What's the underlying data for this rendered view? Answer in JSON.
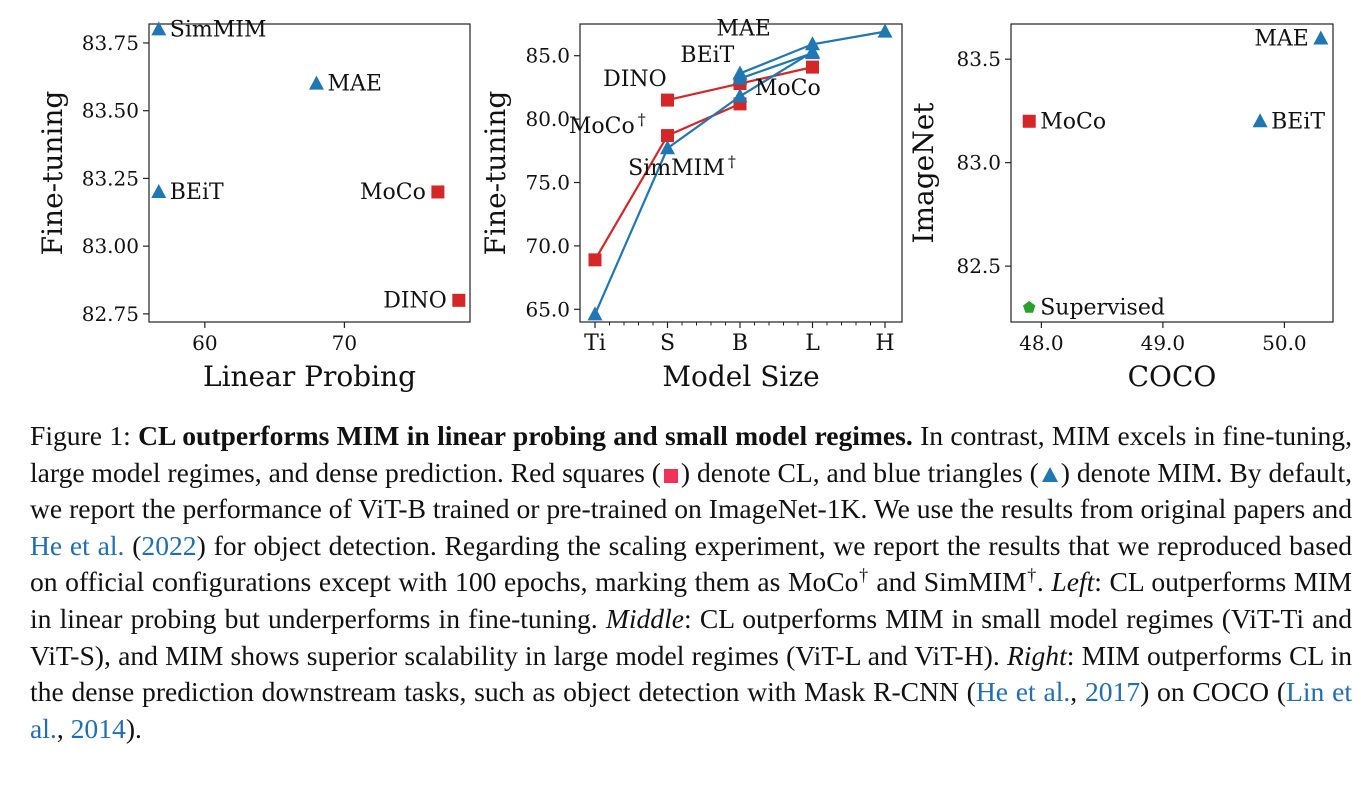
{
  "colors": {
    "cl": "#d62728",
    "mim": "#1f77b4",
    "supervised": "#2ca02c",
    "link": "#1f6fb5"
  },
  "chart_data": [
    {
      "type": "scatter",
      "xlabel": "Linear Probing",
      "ylabel": "Fine-tuning",
      "xlim": [
        56,
        79
      ],
      "ylim": [
        82.72,
        83.82
      ],
      "xticks": [
        60,
        70
      ],
      "xtick_labels": [
        "60",
        "70"
      ],
      "yticks": [
        82.75,
        83.0,
        83.25,
        83.5,
        83.75
      ],
      "ytick_labels": [
        "82.75",
        "83.00",
        "83.25",
        "83.50",
        "83.75"
      ],
      "points": [
        {
          "label": "SimMIM",
          "x": 56.7,
          "y": 83.8,
          "group": "mim",
          "marker": "triangle",
          "label_pos": "right"
        },
        {
          "label": "MAE",
          "x": 68.0,
          "y": 83.6,
          "group": "mim",
          "marker": "triangle",
          "label_pos": "right"
        },
        {
          "label": "BEiT",
          "x": 56.7,
          "y": 83.2,
          "group": "mim",
          "marker": "triangle",
          "label_pos": "right"
        },
        {
          "label": "MoCo",
          "x": 76.7,
          "y": 83.2,
          "group": "cl",
          "marker": "square",
          "label_pos": "left"
        },
        {
          "label": "DINO",
          "x": 78.2,
          "y": 82.8,
          "group": "cl",
          "marker": "square",
          "label_pos": "left"
        }
      ]
    },
    {
      "type": "line",
      "xlabel": "Model Size",
      "ylabel": "Fine-tuning",
      "categories": [
        "Ti",
        "S",
        "B",
        "L",
        "H"
      ],
      "ylim": [
        64.0,
        87.5
      ],
      "yticks": [
        65.0,
        70.0,
        75.0,
        80.0,
        85.0
      ],
      "ytick_labels": [
        "65.0",
        "70.0",
        "75.0",
        "80.0",
        "85.0"
      ],
      "series": [
        {
          "name": "DINO",
          "group": "cl",
          "marker": "square",
          "points": [
            [
              "S",
              81.5
            ],
            [
              "B",
              82.8
            ],
            [
              "L",
              84.1
            ]
          ]
        },
        {
          "name": "MoCo†",
          "group": "cl",
          "marker": "square",
          "points": [
            [
              "Ti",
              68.9
            ],
            [
              "S",
              78.7
            ],
            [
              "B",
              81.2
            ]
          ]
        },
        {
          "name": "SimMIM†",
          "group": "mim",
          "marker": "triangle",
          "points": [
            [
              "Ti",
              64.6
            ],
            [
              "S",
              77.7
            ],
            [
              "B",
              81.8
            ],
            [
              "L",
              85.3
            ]
          ]
        },
        {
          "name": "BEiT",
          "group": "mim",
          "marker": "triangle",
          "points": [
            [
              "B",
              83.2
            ],
            [
              "L",
              85.2
            ]
          ]
        },
        {
          "name": "MAE",
          "group": "mim",
          "marker": "triangle",
          "points": [
            [
              "B",
              83.6
            ],
            [
              "L",
              85.9
            ],
            [
              "H",
              86.9
            ]
          ]
        }
      ],
      "annotations": [
        {
          "text": "DINO",
          "group": "cl",
          "cat": 0.55,
          "y": 82.6
        },
        {
          "text": "MoCo",
          "dagger": true,
          "group": "cl",
          "cat": 0.17,
          "y": 78.9
        },
        {
          "text": "MoCo",
          "dagger": false,
          "group": "cl",
          "cat": 2.66,
          "y": 81.9
        },
        {
          "text": "BEiT",
          "group": "mim",
          "cat": 1.55,
          "y": 84.5
        },
        {
          "text": "MAE",
          "group": "mim",
          "cat": 2.05,
          "y": 86.6
        },
        {
          "text": "SimMIM",
          "dagger": true,
          "group": "mim",
          "cat": 1.2,
          "y": 75.6
        }
      ]
    },
    {
      "type": "scatter",
      "xlabel": "COCO",
      "ylabel": "ImageNet",
      "xlim": [
        47.75,
        50.4
      ],
      "ylim": [
        82.23,
        83.67
      ],
      "xticks": [
        48.0,
        49.0,
        50.0
      ],
      "xtick_labels": [
        "48.0",
        "49.0",
        "50.0"
      ],
      "yticks": [
        82.5,
        83.0,
        83.5
      ],
      "ytick_labels": [
        "82.5",
        "83.0",
        "83.5"
      ],
      "points": [
        {
          "label": "MAE",
          "x": 50.3,
          "y": 83.6,
          "group": "mim",
          "marker": "triangle",
          "label_pos": "left"
        },
        {
          "label": "MoCo",
          "x": 47.9,
          "y": 83.2,
          "group": "cl",
          "marker": "square",
          "label_pos": "right"
        },
        {
          "label": "BEiT",
          "x": 49.8,
          "y": 83.2,
          "group": "mim",
          "marker": "triangle",
          "label_pos": "right"
        },
        {
          "label": "Supervised",
          "x": 47.9,
          "y": 82.3,
          "group": "supervised",
          "marker": "pentagon",
          "label_pos": "right"
        }
      ]
    }
  ],
  "caption": {
    "figure_label": "Figure 1:",
    "bold_title": "CL outperforms MIM in linear probing and small model regimes.",
    "s1": "In contrast, MIM excels in fine-tuning, large model regimes, and dense prediction. Red squares (",
    "s2": ") denote CL, and blue triangles (",
    "s3": ") denote MIM. By default, we report the performance of ViT-B trained or pre-trained on ImageNet-1K. We use the results from original papers and",
    "cite1_author": "He et al.",
    "cite1_open": "(",
    "cite1_year": "2022",
    "cite1_close": ")",
    "s4": "for object detection. Regarding the scaling experiment, we report the results that we reproduced based on official configurations except with 100 epochs, marking them as",
    "moco": "MoCo",
    "and_word": "and",
    "simmim": "SimMIM",
    "dagger": "†",
    "period": ".",
    "left_label": "Left",
    "left_text": ": CL outperforms MIM in linear probing but underperforms in fine-tuning.",
    "middle_label": "Middle",
    "middle_text": ": CL outperforms MIM in small model regimes (ViT-Ti and ViT-S), and MIM shows superior scalability in large model regimes (ViT-L and ViT-H).",
    "right_label": "Right",
    "right_text": ": MIM outperforms CL in the dense prediction downstream tasks, such as object detection with Mask R-CNN (",
    "cite2_author": "He et al.",
    "cite2_sep": ",",
    "cite2_year": "2017",
    "s5": ") on COCO (",
    "cite3_author": "Lin et al.",
    "cite3_sep": ",",
    "cite3_year": "2014",
    "s6": ")."
  }
}
